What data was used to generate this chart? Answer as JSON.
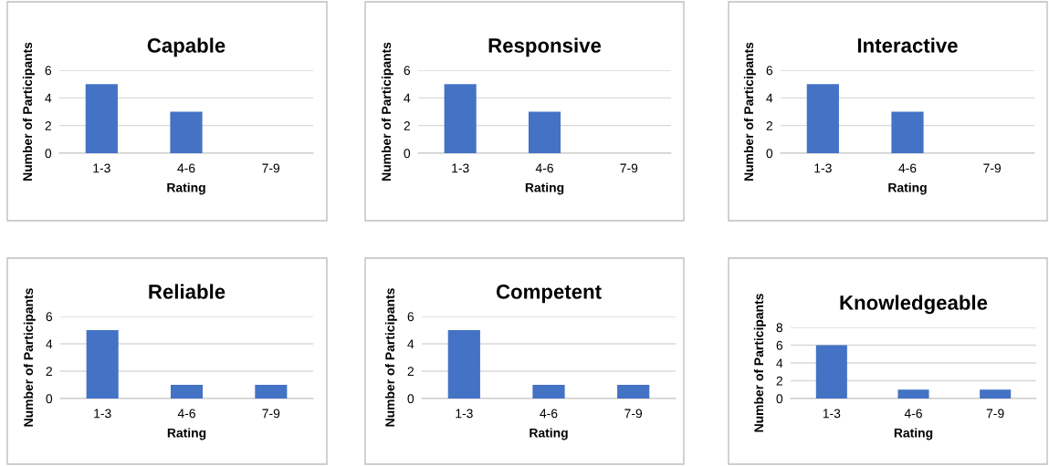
{
  "chart_data": [
    {
      "type": "bar",
      "title": "Capable",
      "xlabel": "Rating",
      "ylabel": "Number of Participants",
      "categories": [
        "1-3",
        "4-6",
        "7-9"
      ],
      "values": [
        5,
        3,
        0
      ],
      "color": "#4472c4",
      "ylim": [
        0,
        6
      ],
      "yticks": [
        0,
        2,
        4,
        6
      ],
      "grid": "y"
    },
    {
      "type": "bar",
      "title": "Responsive",
      "xlabel": "Rating",
      "ylabel": "Number of Participants",
      "categories": [
        "1-3",
        "4-6",
        "7-9"
      ],
      "values": [
        5,
        3,
        0
      ],
      "color": "#4472c4",
      "ylim": [
        0,
        6
      ],
      "yticks": [
        0,
        2,
        4,
        6
      ],
      "grid": "y"
    },
    {
      "type": "bar",
      "title": "Interactive",
      "xlabel": "Rating",
      "ylabel": "Number of Participants",
      "categories": [
        "1-3",
        "4-6",
        "7-9"
      ],
      "values": [
        5,
        3,
        0
      ],
      "color": "#4472c4",
      "ylim": [
        0,
        6
      ],
      "yticks": [
        0,
        2,
        4,
        6
      ],
      "grid": "y"
    },
    {
      "type": "bar",
      "title": "Reliable",
      "xlabel": "Rating",
      "ylabel": "Number of Participants",
      "categories": [
        "1-3",
        "4-6",
        "7-9"
      ],
      "values": [
        5,
        1,
        1
      ],
      "color": "#4472c4",
      "ylim": [
        0,
        6
      ],
      "yticks": [
        0,
        2,
        4,
        6
      ],
      "grid": "y"
    },
    {
      "type": "bar",
      "title": "Competent",
      "xlabel": "Rating",
      "ylabel": "Number of Participants",
      "categories": [
        "1-3",
        "4-6",
        "7-9"
      ],
      "values": [
        5,
        1,
        1
      ],
      "color": "#4472c4",
      "ylim": [
        0,
        6
      ],
      "yticks": [
        0,
        2,
        4,
        6
      ],
      "grid": "y"
    },
    {
      "type": "bar",
      "title": "Knowledgeable",
      "xlabel": "Rating",
      "ylabel": "Number of Participants",
      "categories": [
        "1-3",
        "4-6",
        "7-9"
      ],
      "values": [
        6,
        1,
        1
      ],
      "color": "#4472c4",
      "ylim": [
        0,
        8
      ],
      "yticks": [
        0,
        2,
        4,
        6,
        8
      ],
      "grid": "y"
    }
  ]
}
